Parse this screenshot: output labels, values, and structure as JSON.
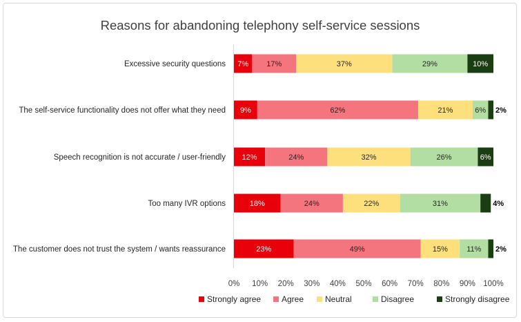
{
  "chart_data": {
    "type": "bar",
    "orientation": "horizontal",
    "stacked": "percent",
    "title": "Reasons for abandoning telephony self-service sessions",
    "categories": [
      "Excessive security questions",
      "The self-service functionality does not offer what they need",
      "Speech recognition is not accurate / user-friendly",
      "Too many IVR options",
      "The customer does not trust the system / wants reassurance"
    ],
    "series": [
      {
        "name": "Strongly agree",
        "color": "#e8000b",
        "values": [
          7,
          9,
          12,
          18,
          23
        ],
        "labels": [
          "7%",
          "9%",
          "12%",
          "18%",
          "23%"
        ]
      },
      {
        "name": "Agree",
        "color": "#f4757e",
        "values": [
          17,
          62,
          24,
          24,
          49
        ],
        "labels": [
          "17%",
          "62%",
          "24%",
          "24%",
          "49%"
        ]
      },
      {
        "name": "Neutral",
        "color": "#fde07c",
        "values": [
          37,
          21,
          32,
          22,
          15
        ],
        "labels": [
          "37%",
          "21%",
          "32%",
          "22%",
          "15%"
        ]
      },
      {
        "name": "Disagree",
        "color": "#b3dea3",
        "values": [
          29,
          6,
          26,
          31,
          11
        ],
        "labels": [
          "29%",
          "6%",
          "26%",
          "31%",
          "11%"
        ]
      },
      {
        "name": "Strongly disagree",
        "color": "#1a3d12",
        "values": [
          10,
          2,
          6,
          4,
          2
        ],
        "labels": [
          "10%",
          "2%",
          "6%",
          "4%",
          "2%"
        ]
      }
    ],
    "xlim": [
      0,
      100
    ],
    "xticks": [
      "0%",
      "10%",
      "20%",
      "30%",
      "40%",
      "50%",
      "60%",
      "70%",
      "80%",
      "90%",
      "100%"
    ],
    "grid": false,
    "legend": "bottom"
  }
}
